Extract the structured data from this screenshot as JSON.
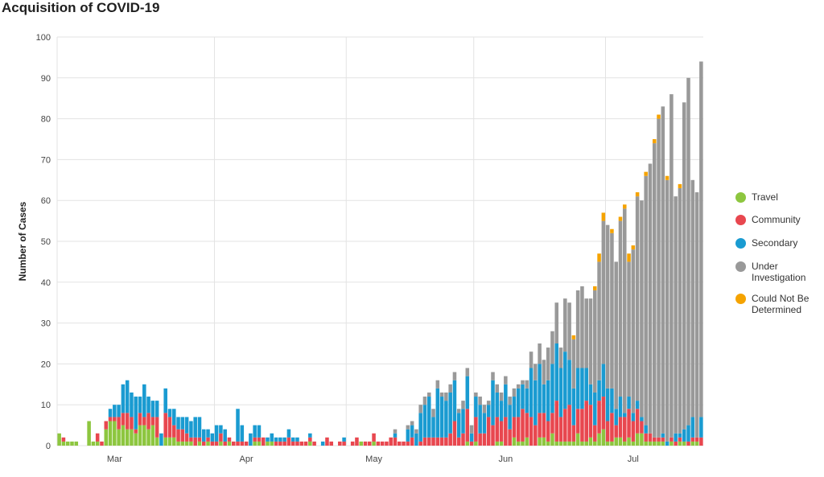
{
  "title": "Acquisition of COVID-19",
  "chart_data": {
    "type": "bar",
    "stacked": true,
    "title": "Acquisition of COVID-19",
    "ylabel": "Number of Cases",
    "xlabel": "",
    "ylim": [
      0,
      100
    ],
    "yticks": [
      0,
      10,
      20,
      30,
      40,
      50,
      60,
      70,
      80,
      90,
      100
    ],
    "xtick_labels": [
      {
        "label": "Mar",
        "day": 13
      },
      {
        "label": "Apr",
        "day": 44
      },
      {
        "label": "May",
        "day": 74
      },
      {
        "label": "Jun",
        "day": 105
      },
      {
        "label": "Jul",
        "day": 135
      }
    ],
    "grid": true,
    "legend_position": "right",
    "x_start": "2020-02-18",
    "series": [
      {
        "name": "Travel",
        "color": "#8dc63f",
        "values": [
          3,
          1,
          1,
          1,
          1,
          0,
          0,
          6,
          1,
          1,
          0,
          4,
          6,
          6,
          4,
          5,
          4,
          4,
          3,
          5,
          5,
          4,
          5,
          2,
          0,
          2,
          2,
          2,
          1,
          1,
          1,
          1,
          0,
          1,
          0,
          1,
          0,
          0,
          1,
          0,
          1,
          0,
          0,
          0,
          0,
          0,
          1,
          1,
          0,
          1,
          1,
          0,
          0,
          0,
          0,
          0,
          0,
          0,
          0,
          1,
          0,
          0,
          0,
          0,
          0,
          0,
          0,
          0,
          0,
          0,
          0,
          1,
          0,
          0,
          1,
          0,
          0,
          0,
          0,
          0,
          0,
          0,
          0,
          0,
          0,
          0,
          0,
          0,
          0,
          0,
          0,
          0,
          0,
          0,
          0,
          0,
          1,
          0,
          1,
          0,
          0,
          0,
          0,
          1,
          1,
          0,
          0,
          2,
          1,
          1,
          2,
          0,
          0,
          2,
          2,
          1,
          3,
          1,
          1,
          1,
          1,
          1,
          3,
          1,
          1,
          2,
          1,
          3,
          4,
          1,
          1,
          2,
          2,
          1,
          2,
          1,
          3,
          3,
          1,
          1,
          1,
          1,
          1,
          0,
          1,
          0,
          1,
          1,
          0,
          1,
          1,
          0
        ]
      },
      {
        "name": "Community",
        "color": "#e8474f",
        "values": [
          0,
          1,
          0,
          0,
          0,
          0,
          0,
          0,
          0,
          2,
          1,
          2,
          1,
          1,
          3,
          3,
          4,
          3,
          1,
          3,
          2,
          4,
          2,
          5,
          0,
          6,
          5,
          3,
          3,
          3,
          2,
          1,
          2,
          1,
          1,
          1,
          1,
          1,
          2,
          1,
          1,
          1,
          1,
          1,
          1,
          0,
          1,
          1,
          2,
          0,
          0,
          1,
          1,
          1,
          2,
          1,
          1,
          1,
          1,
          1,
          1,
          0,
          0,
          2,
          1,
          0,
          1,
          1,
          0,
          1,
          2,
          0,
          1,
          1,
          2,
          1,
          1,
          1,
          2,
          2,
          1,
          1,
          1,
          2,
          0,
          1,
          2,
          2,
          2,
          2,
          2,
          2,
          3,
          6,
          2,
          3,
          8,
          1,
          6,
          3,
          3,
          7,
          5,
          6,
          5,
          7,
          4,
          5,
          6,
          8,
          6,
          7,
          5,
          6,
          6,
          5,
          5,
          10,
          6,
          8,
          9,
          4,
          6,
          8,
          10,
          8,
          4,
          8,
          8,
          5,
          7,
          3,
          5,
          6,
          7,
          5,
          6,
          3,
          2,
          2,
          1,
          1,
          1,
          0,
          1,
          1,
          1,
          0,
          1,
          1,
          1,
          2
        ]
      },
      {
        "name": "Secondary",
        "color": "#1a9bd1",
        "values": [
          0,
          0,
          0,
          0,
          0,
          0,
          0,
          0,
          0,
          0,
          0,
          0,
          2,
          3,
          3,
          7,
          8,
          6,
          8,
          4,
          8,
          4,
          4,
          4,
          3,
          6,
          2,
          4,
          3,
          3,
          4,
          4,
          5,
          5,
          3,
          2,
          2,
          4,
          2,
          3,
          0,
          0,
          8,
          4,
          0,
          3,
          3,
          3,
          0,
          1,
          2,
          1,
          1,
          1,
          2,
          1,
          1,
          0,
          0,
          1,
          0,
          0,
          1,
          0,
          0,
          0,
          0,
          1,
          0,
          0,
          0,
          0,
          0,
          0,
          0,
          0,
          0,
          0,
          0,
          1,
          0,
          0,
          3,
          3,
          3,
          7,
          8,
          10,
          5,
          12,
          10,
          9,
          10,
          10,
          6,
          6,
          8,
          2,
          5,
          7,
          5,
          3,
          11,
          6,
          5,
          8,
          6,
          5,
          7,
          6,
          6,
          12,
          11,
          12,
          7,
          10,
          12,
          14,
          12,
          14,
          11,
          9,
          10,
          10,
          8,
          5,
          8,
          5,
          8,
          8,
          6,
          4,
          5,
          1,
          3,
          2,
          2,
          1,
          2,
          0,
          0,
          0,
          1,
          1,
          0,
          2,
          1,
          3,
          4,
          5,
          0,
          5
        ]
      },
      {
        "name": "Under Investigation",
        "color": "#999999",
        "values": [
          0,
          0,
          0,
          0,
          0,
          0,
          0,
          0,
          0,
          0,
          0,
          0,
          0,
          0,
          0,
          0,
          0,
          0,
          0,
          0,
          0,
          0,
          0,
          0,
          0,
          0,
          0,
          0,
          0,
          0,
          0,
          0,
          0,
          0,
          0,
          0,
          0,
          0,
          0,
          0,
          0,
          0,
          0,
          0,
          0,
          0,
          0,
          0,
          0,
          0,
          0,
          0,
          0,
          0,
          0,
          0,
          0,
          0,
          0,
          0,
          0,
          0,
          0,
          0,
          0,
          0,
          0,
          0,
          0,
          0,
          0,
          0,
          0,
          0,
          0,
          0,
          0,
          0,
          0,
          1,
          0,
          0,
          1,
          1,
          1,
          2,
          2,
          1,
          2,
          2,
          1,
          2,
          2,
          2,
          1,
          2,
          2,
          2,
          1,
          2,
          2,
          1,
          2,
          2,
          2,
          2,
          2,
          2,
          1,
          1,
          2,
          4,
          4,
          5,
          6,
          8,
          8,
          10,
          5,
          13,
          14,
          12,
          19,
          20,
          17,
          21,
          25,
          29,
          35,
          40,
          38,
          36,
          43,
          50,
          33,
          40,
          50,
          53,
          61,
          66,
          72,
          78,
          80,
          64,
          84,
          58,
          60,
          80,
          85,
          58,
          60,
          87
        ]
      },
      {
        "name": "Could Not Be Determined",
        "color": "#f5a300",
        "values": [
          0,
          0,
          0,
          0,
          0,
          0,
          0,
          0,
          0,
          0,
          0,
          0,
          0,
          0,
          0,
          0,
          0,
          0,
          0,
          0,
          0,
          0,
          0,
          0,
          0,
          0,
          0,
          0,
          0,
          0,
          0,
          0,
          0,
          0,
          0,
          0,
          0,
          0,
          0,
          0,
          0,
          0,
          0,
          0,
          0,
          0,
          0,
          0,
          0,
          0,
          0,
          0,
          0,
          0,
          0,
          0,
          0,
          0,
          0,
          0,
          0,
          0,
          0,
          0,
          0,
          0,
          0,
          0,
          0,
          0,
          0,
          0,
          0,
          0,
          0,
          0,
          0,
          0,
          0,
          0,
          0,
          0,
          0,
          0,
          0,
          0,
          0,
          0,
          0,
          0,
          0,
          0,
          0,
          0,
          0,
          0,
          0,
          0,
          0,
          0,
          0,
          0,
          0,
          0,
          0,
          0,
          0,
          0,
          0,
          0,
          0,
          0,
          0,
          0,
          0,
          0,
          0,
          0,
          0,
          0,
          0,
          1,
          0,
          0,
          0,
          0,
          1,
          2,
          2,
          0,
          1,
          0,
          1,
          1,
          2,
          1,
          1,
          0,
          1,
          0,
          1,
          1,
          0,
          1,
          0,
          0,
          1,
          0,
          0,
          0,
          0,
          0
        ]
      }
    ]
  }
}
